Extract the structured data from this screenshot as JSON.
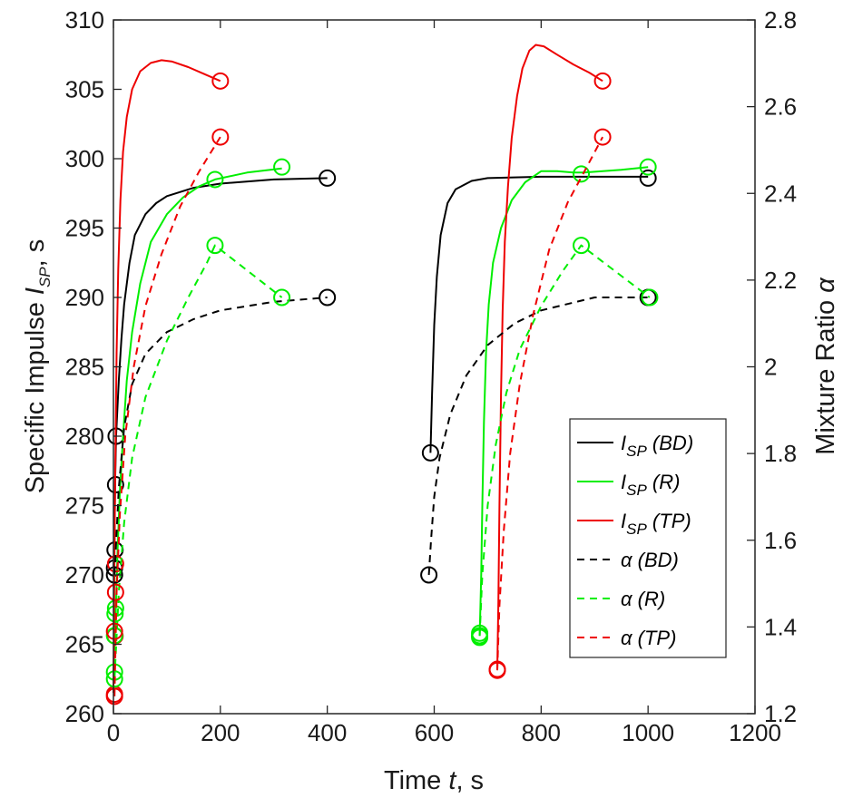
{
  "chart_data": {
    "type": "line",
    "xlabel": {
      "prefix": "Time  ",
      "var": "t",
      "suffix": ", s"
    },
    "ylabel_left": {
      "prefix": "Specific Impulse  ",
      "var": "I",
      "sub": "SP",
      "suffix": ", s"
    },
    "ylabel_right": {
      "prefix": "Mixture Ratio  ",
      "var": "α"
    },
    "xlim": [
      0,
      1200
    ],
    "ylim_left": [
      260,
      310
    ],
    "ylim_right": [
      1.2,
      2.8
    ],
    "xticks": [
      0,
      200,
      400,
      600,
      800,
      1000,
      1200
    ],
    "yticks_left": [
      260,
      265,
      270,
      275,
      280,
      285,
      290,
      295,
      300,
      305,
      310
    ],
    "yticks_right": [
      "1.2",
      "1.4",
      "1.6",
      "1.8",
      "2",
      "2.2",
      "2.4",
      "2.6",
      "2.8"
    ],
    "grid": false,
    "legend_position": "lower-right",
    "series": [
      {
        "name": "ISP (BD)",
        "legend_main": "I",
        "legend_sub": "SP",
        "legend_tag": " (BD)",
        "axis": "left",
        "color": "#000000",
        "dash": false,
        "segments": [
          [
            [
              0,
              270.5
            ],
            [
              1,
              271.5
            ],
            [
              2,
              272.5
            ],
            [
              3,
              276.5
            ],
            [
              5,
              280
            ],
            [
              10,
              284
            ],
            [
              15,
              287
            ],
            [
              20,
              289.5
            ],
            [
              30,
              292.5
            ],
            [
              40,
              294.5
            ],
            [
              60,
              296
            ],
            [
              80,
              296.8
            ],
            [
              100,
              297.3
            ],
            [
              150,
              297.9
            ],
            [
              200,
              298.2
            ],
            [
              300,
              298.5
            ],
            [
              400,
              298.6
            ]
          ],
          [
            [
              593,
              278.8
            ],
            [
              596,
              283
            ],
            [
              600,
              288
            ],
            [
              605,
              291.5
            ],
            [
              612,
              294.5
            ],
            [
              625,
              296.8
            ],
            [
              640,
              297.8
            ],
            [
              670,
              298.4
            ],
            [
              700,
              298.6
            ],
            [
              800,
              298.7
            ],
            [
              900,
              298.7
            ],
            [
              1000,
              298.7
            ]
          ]
        ],
        "markers": [
          [
            2,
            270.5
          ],
          [
            3,
            271.8
          ],
          [
            4,
            276.5
          ],
          [
            5,
            280
          ],
          [
            400,
            298.6
          ],
          [
            593,
            278.8
          ],
          [
            1000,
            298.6
          ]
        ]
      },
      {
        "name": "ISP (R)",
        "legend_main": "I",
        "legend_sub": "SP",
        "legend_tag": " (R)",
        "axis": "left",
        "color": "#00ee00",
        "dash": false,
        "segments": [
          [
            [
              0,
              263
            ],
            [
              3,
              266
            ],
            [
              5,
              268
            ],
            [
              8,
              272
            ],
            [
              12,
              276
            ],
            [
              18,
              280
            ],
            [
              25,
              284
            ],
            [
              35,
              287.5
            ],
            [
              50,
              291
            ],
            [
              70,
              294
            ],
            [
              100,
              296
            ],
            [
              130,
              297.2
            ],
            [
              160,
              298
            ],
            [
              190,
              298.5
            ],
            [
              250,
              299
            ],
            [
              315,
              299.3
            ]
          ],
          [
            [
              685,
              265.6
            ],
            [
              688,
              270
            ],
            [
              690,
              275
            ],
            [
              693,
              281
            ],
            [
              697,
              286
            ],
            [
              702,
              289.5
            ],
            [
              710,
              292.5
            ],
            [
              725,
              295
            ],
            [
              745,
              297
            ],
            [
              770,
              298.3
            ],
            [
              800,
              299.1
            ],
            [
              830,
              299.1
            ],
            [
              860,
              299
            ],
            [
              880,
              299
            ],
            [
              950,
              299.2
            ],
            [
              1000,
              299.4
            ]
          ]
        ],
        "markers": [
          [
            2,
            263
          ],
          [
            3,
            267.2
          ],
          [
            4,
            267.6
          ],
          [
            190,
            298.5
          ],
          [
            315,
            299.4
          ],
          [
            685,
            265.8
          ],
          [
            685,
            265.5
          ],
          [
            875,
            298.9
          ],
          [
            1000,
            299.4
          ]
        ]
      },
      {
        "name": "ISP (TP)",
        "legend_main": "I",
        "legend_sub": "SP",
        "legend_tag": " (TP)",
        "axis": "left",
        "color": "#ee0000",
        "dash": false,
        "segments": [
          [
            [
              0,
              261.5
            ],
            [
              1,
              266
            ],
            [
              2,
              272
            ],
            [
              4,
              280
            ],
            [
              6,
              286
            ],
            [
              9,
              292
            ],
            [
              13,
              297
            ],
            [
              18,
              300.5
            ],
            [
              25,
              303
            ],
            [
              35,
              305
            ],
            [
              50,
              306.3
            ],
            [
              70,
              306.9
            ],
            [
              90,
              307.1
            ],
            [
              110,
              307
            ],
            [
              140,
              306.6
            ],
            [
              170,
              306.1
            ],
            [
              200,
              305.6
            ]
          ],
          [
            [
              718,
              263.2
            ],
            [
              720,
              268
            ],
            [
              722,
              275
            ],
            [
              725,
              283
            ],
            [
              728,
              289
            ],
            [
              732,
              294
            ],
            [
              738,
              298
            ],
            [
              745,
              301.5
            ],
            [
              755,
              304.5
            ],
            [
              765,
              306.5
            ],
            [
              778,
              307.8
            ],
            [
              790,
              308.2
            ],
            [
              805,
              308.1
            ],
            [
              830,
              307.5
            ],
            [
              860,
              306.8
            ],
            [
              890,
              306.2
            ],
            [
              915,
              305.6
            ]
          ]
        ],
        "markers": [
          [
            2,
            261.4
          ],
          [
            3,
            265.6
          ],
          [
            4,
            270.8
          ],
          [
            200,
            305.6
          ],
          [
            718,
            263.2
          ],
          [
            915,
            305.6
          ]
        ]
      },
      {
        "name": "α (BD)",
        "legend_main": "α",
        "legend_sub": "",
        "legend_tag": " (BD)",
        "axis": "right",
        "color": "#000000",
        "dash": true,
        "segments": [
          [
            [
              2,
              1.52
            ],
            [
              10,
              1.72
            ],
            [
              20,
              1.86
            ],
            [
              35,
              1.96
            ],
            [
              60,
              2.03
            ],
            [
              100,
              2.08
            ],
            [
              150,
              2.11
            ],
            [
              200,
              2.13
            ],
            [
              300,
              2.15
            ],
            [
              400,
              2.16
            ]
          ],
          [
            [
              590,
              1.52
            ],
            [
              594,
              1.6
            ],
            [
              600,
              1.7
            ],
            [
              610,
              1.79
            ],
            [
              630,
              1.89
            ],
            [
              660,
              1.98
            ],
            [
              700,
              2.05
            ],
            [
              750,
              2.1
            ],
            [
              800,
              2.13
            ],
            [
              900,
              2.16
            ],
            [
              1000,
              2.16
            ]
          ]
        ],
        "markers": [
          [
            2,
            1.52
          ],
          [
            400,
            2.16
          ],
          [
            590,
            1.52
          ],
          [
            1000,
            2.16
          ]
        ]
      },
      {
        "name": "α (R)",
        "legend_main": "α",
        "legend_sub": "",
        "legend_tag": " (R)",
        "axis": "right",
        "color": "#00ee00",
        "dash": true,
        "segments": [
          [
            [
              2,
              1.28
            ],
            [
              10,
              1.48
            ],
            [
              20,
              1.64
            ],
            [
              35,
              1.79
            ],
            [
              60,
              1.93
            ],
            [
              100,
              2.06
            ],
            [
              140,
              2.16
            ],
            [
              175,
              2.24
            ],
            [
              190,
              2.28
            ],
            [
              315,
              2.16
            ]
          ],
          [
            [
              685,
              1.38
            ],
            [
              690,
              1.52
            ],
            [
              700,
              1.68
            ],
            [
              715,
              1.82
            ],
            [
              735,
              1.94
            ],
            [
              760,
              2.04
            ],
            [
              800,
              2.14
            ],
            [
              840,
              2.22
            ],
            [
              875,
              2.28
            ],
            [
              1003,
              2.16
            ]
          ]
        ],
        "markers": [
          [
            2,
            1.28
          ],
          [
            2,
            1.38
          ],
          [
            190,
            2.28
          ],
          [
            315,
            2.16
          ],
          [
            685,
            1.38
          ],
          [
            875,
            2.28
          ],
          [
            1003,
            2.16
          ]
        ]
      },
      {
        "name": "α (TP)",
        "legend_main": "α",
        "legend_sub": "",
        "legend_tag": " (TP)",
        "axis": "right",
        "color": "#ee0000",
        "dash": true,
        "segments": [
          [
            [
              2,
              1.24
            ],
            [
              6,
              1.48
            ],
            [
              12,
              1.66
            ],
            [
              22,
              1.84
            ],
            [
              38,
              2.0
            ],
            [
              60,
              2.14
            ],
            [
              90,
              2.26
            ],
            [
              125,
              2.37
            ],
            [
              160,
              2.45
            ],
            [
              200,
              2.53
            ]
          ],
          [
            [
              718,
              1.3
            ],
            [
              722,
              1.45
            ],
            [
              730,
              1.62
            ],
            [
              742,
              1.8
            ],
            [
              760,
              1.96
            ],
            [
              785,
              2.12
            ],
            [
              815,
              2.27
            ],
            [
              850,
              2.38
            ],
            [
              885,
              2.46
            ],
            [
              915,
              2.53
            ]
          ]
        ],
        "markers": [
          [
            2,
            1.24
          ],
          [
            2,
            1.39
          ],
          [
            4,
            1.48
          ],
          [
            200,
            2.53
          ],
          [
            718,
            1.3
          ],
          [
            915,
            2.53
          ]
        ]
      }
    ]
  }
}
